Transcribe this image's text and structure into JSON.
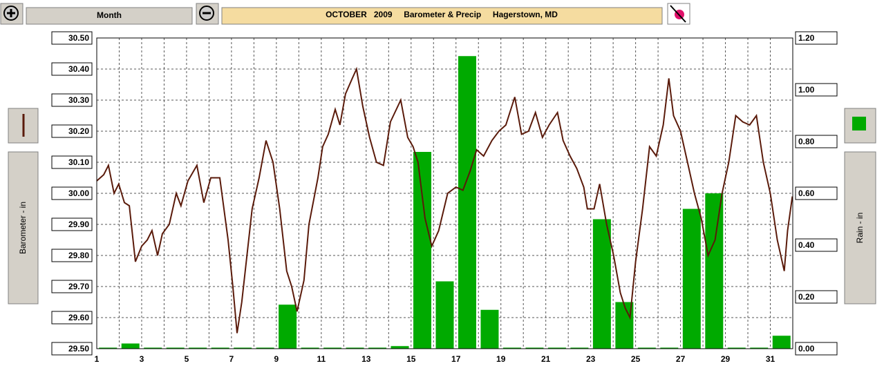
{
  "ui": {
    "period_button": "Month"
  },
  "chart_data": {
    "type": "combo",
    "title": "OCTOBER   2009     Barometer & Precip     Hagerstown, MD",
    "y_label": "Barometer - in",
    "y2_label": "Rain - in",
    "xlim": [
      1,
      32
    ],
    "xticks": [
      1,
      3,
      5,
      7,
      9,
      11,
      13,
      15,
      17,
      19,
      21,
      23,
      25,
      27,
      29,
      31
    ],
    "xminorticks": [
      2,
      4,
      6,
      8,
      10,
      12,
      14,
      16,
      18,
      20,
      22,
      24,
      26,
      28,
      30,
      32
    ],
    "ylim": [
      29.5,
      30.5
    ],
    "yticks": [
      {
        "value": 29.5,
        "label": "29.50"
      },
      {
        "value": 29.6,
        "label": "29.60"
      },
      {
        "value": 29.7,
        "label": "29.70"
      },
      {
        "value": 29.8,
        "label": "29.80"
      },
      {
        "value": 29.9,
        "label": "29.90"
      },
      {
        "value": 30.0,
        "label": "30.00"
      },
      {
        "value": 30.1,
        "label": "30.10"
      },
      {
        "value": 30.2,
        "label": "30.20"
      },
      {
        "value": 30.3,
        "label": "30.30"
      },
      {
        "value": 30.4,
        "label": "30.40"
      },
      {
        "value": 30.5,
        "label": "30.50"
      }
    ],
    "y2lim": [
      0,
      1.2
    ],
    "y2ticks": [
      {
        "value": 0,
        "label": "0.00"
      },
      {
        "value": 0.2,
        "label": "0.20"
      },
      {
        "value": 0.4,
        "label": "0.40"
      },
      {
        "value": 0.6,
        "label": "0.60"
      },
      {
        "value": 0.8,
        "label": "0.80"
      },
      {
        "value": 1.0,
        "label": "1.00"
      },
      {
        "value": 1.2,
        "label": "1.20"
      }
    ],
    "grid": true,
    "series": [
      {
        "type": "line",
        "color": "#5a1a0a",
        "x": [
          1.0,
          1.31,
          1.52,
          1.77,
          1.98,
          2.23,
          2.45,
          2.72,
          3.0,
          3.25,
          3.46,
          3.71,
          3.92,
          4.23,
          4.54,
          4.75,
          5.06,
          5.46,
          5.77,
          6.08,
          6.48,
          6.85,
          7.06,
          7.25,
          7.46,
          7.92,
          8.23,
          8.54,
          8.85,
          9.15,
          9.46,
          9.68,
          9.92,
          10.23,
          10.45,
          10.85,
          11.06,
          11.31,
          11.62,
          11.83,
          12.08,
          12.38,
          12.57,
          12.85,
          13.15,
          13.46,
          13.77,
          14.08,
          14.54,
          14.85,
          15.09,
          15.31,
          15.62,
          15.92,
          16.23,
          16.63,
          17.0,
          17.31,
          17.62,
          17.92,
          18.23,
          18.6,
          18.91,
          19.22,
          19.62,
          19.92,
          20.23,
          20.54,
          20.85,
          21.15,
          21.52,
          21.77,
          22.08,
          22.38,
          22.69,
          22.85,
          23.15,
          23.4,
          23.71,
          24.02,
          24.32,
          24.54,
          24.75,
          25.0,
          25.31,
          25.62,
          25.92,
          26.23,
          26.48,
          26.69,
          27.0,
          27.31,
          27.62,
          27.92,
          28.23,
          28.54,
          28.85,
          29.15,
          29.46,
          29.77,
          30.08,
          30.38,
          30.69,
          31.0,
          31.31,
          31.62,
          31.77,
          31.98
        ],
        "values": [
          30.04,
          30.06,
          30.09,
          30.0,
          30.03,
          29.97,
          29.96,
          29.78,
          29.83,
          29.85,
          29.88,
          29.8,
          29.87,
          29.9,
          30.0,
          29.96,
          30.04,
          30.09,
          29.97,
          30.05,
          30.05,
          29.85,
          29.7,
          29.55,
          29.65,
          29.95,
          30.05,
          30.17,
          30.1,
          29.95,
          29.75,
          29.7,
          29.62,
          29.72,
          29.9,
          30.05,
          30.15,
          30.19,
          30.27,
          30.22,
          30.32,
          30.37,
          30.4,
          30.28,
          30.18,
          30.1,
          30.09,
          30.23,
          30.3,
          30.18,
          30.15,
          30.1,
          29.92,
          29.83,
          29.88,
          30.0,
          30.02,
          30.01,
          30.07,
          30.14,
          30.12,
          30.17,
          30.2,
          30.22,
          30.31,
          30.19,
          30.2,
          30.26,
          30.18,
          30.22,
          30.26,
          30.17,
          30.12,
          30.08,
          30.02,
          29.95,
          29.95,
          30.03,
          29.9,
          29.8,
          29.68,
          29.63,
          29.6,
          29.78,
          29.95,
          30.15,
          30.12,
          30.22,
          30.37,
          30.25,
          30.2,
          30.1,
          30.0,
          29.92,
          29.8,
          29.85,
          30.0,
          30.1,
          30.25,
          30.23,
          30.22,
          30.25,
          30.1,
          30.0,
          29.85,
          29.75,
          29.88,
          29.99
        ]
      },
      {
        "type": "bar",
        "axis": "y2",
        "color": "#00aa00",
        "x": [
          1,
          2,
          3,
          4,
          5,
          6,
          7,
          8,
          9,
          10,
          11,
          12,
          13,
          14,
          15,
          16,
          17,
          18,
          19,
          20,
          21,
          22,
          23,
          24,
          25,
          26,
          27,
          28,
          29,
          30,
          31
        ],
        "values": [
          0,
          0.02,
          0,
          0,
          0,
          0,
          0,
          0,
          0.17,
          0,
          0,
          0,
          0,
          0.01,
          0.76,
          0.26,
          1.13,
          0.15,
          0,
          0,
          0,
          0,
          0.5,
          0.18,
          0,
          0,
          0.54,
          0.6,
          0,
          0,
          0.05
        ]
      }
    ]
  }
}
